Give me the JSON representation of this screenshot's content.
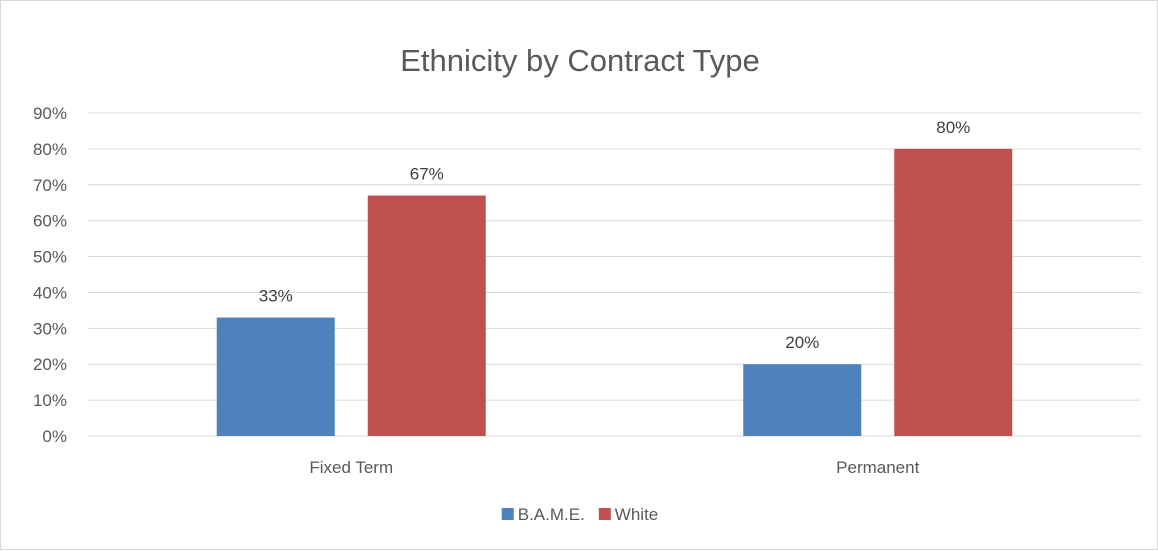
{
  "chart_data": {
    "type": "bar",
    "title": "Ethnicity by Contract Type",
    "xlabel": "",
    "ylabel": "",
    "categories": [
      "Fixed Term",
      "Permanent"
    ],
    "series": [
      {
        "name": "B.A.M.E.",
        "values": [
          33,
          20
        ],
        "labels": [
          "33%",
          "20%"
        ],
        "color": "#4f81bd"
      },
      {
        "name": "White",
        "values": [
          67,
          80
        ],
        "labels": [
          "67%",
          "80%"
        ],
        "color": "#c0504d"
      }
    ],
    "ylim": [
      0,
      90
    ],
    "yticks": [
      0,
      10,
      20,
      30,
      40,
      50,
      60,
      70,
      80,
      90
    ],
    "ytick_labels": [
      "0%",
      "10%",
      "20%",
      "30%",
      "40%",
      "50%",
      "60%",
      "70%",
      "80%",
      "90%"
    ],
    "grid": true,
    "gridline_color": "#d9d9d9",
    "legend_position": "bottom"
  }
}
